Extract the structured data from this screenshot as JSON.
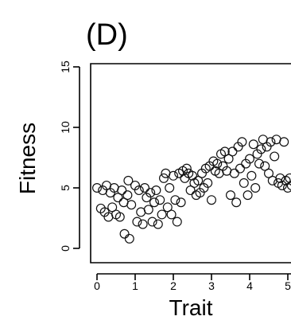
{
  "panel_label": "(D)",
  "chart_data": {
    "type": "scatter",
    "title": "",
    "xlabel": "Trait",
    "ylabel": "Fitness",
    "xlim": [
      -0.2,
      5.2
    ],
    "ylim": [
      -0.5,
      15.5
    ],
    "x_ticks": [
      0,
      1,
      2,
      3,
      4,
      5
    ],
    "x_tick_labels": [
      "0",
      "1",
      "2",
      "3",
      "4",
      "5"
    ],
    "y_ticks": [
      0,
      5,
      10,
      15
    ],
    "y_tick_labels": [
      "0",
      "5",
      "10",
      "15"
    ],
    "grid": false,
    "legend": "none",
    "points": [
      {
        "x": 0.0,
        "y": 5.0
      },
      {
        "x": 0.1,
        "y": 3.3
      },
      {
        "x": 0.15,
        "y": 4.8
      },
      {
        "x": 0.2,
        "y": 3.0
      },
      {
        "x": 0.25,
        "y": 5.2
      },
      {
        "x": 0.3,
        "y": 2.6
      },
      {
        "x": 0.35,
        "y": 4.6
      },
      {
        "x": 0.4,
        "y": 3.4
      },
      {
        "x": 0.45,
        "y": 5.0
      },
      {
        "x": 0.5,
        "y": 2.8
      },
      {
        "x": 0.55,
        "y": 4.2
      },
      {
        "x": 0.6,
        "y": 2.6
      },
      {
        "x": 0.65,
        "y": 4.8
      },
      {
        "x": 0.7,
        "y": 3.8
      },
      {
        "x": 0.72,
        "y": 1.2
      },
      {
        "x": 0.8,
        "y": 4.4
      },
      {
        "x": 0.82,
        "y": 5.6
      },
      {
        "x": 0.85,
        "y": 0.8
      },
      {
        "x": 0.9,
        "y": 3.6
      },
      {
        "x": 1.0,
        "y": 5.2
      },
      {
        "x": 1.05,
        "y": 2.2
      },
      {
        "x": 1.1,
        "y": 4.8
      },
      {
        "x": 1.15,
        "y": 3.0
      },
      {
        "x": 1.2,
        "y": 2.0
      },
      {
        "x": 1.25,
        "y": 5.0
      },
      {
        "x": 1.3,
        "y": 4.2
      },
      {
        "x": 1.35,
        "y": 3.2
      },
      {
        "x": 1.4,
        "y": 4.6
      },
      {
        "x": 1.45,
        "y": 2.2
      },
      {
        "x": 1.5,
        "y": 3.8
      },
      {
        "x": 1.55,
        "y": 4.8
      },
      {
        "x": 1.6,
        "y": 2.0
      },
      {
        "x": 1.65,
        "y": 4.0
      },
      {
        "x": 1.7,
        "y": 2.8
      },
      {
        "x": 1.75,
        "y": 5.8
      },
      {
        "x": 1.8,
        "y": 6.2
      },
      {
        "x": 1.85,
        "y": 3.4
      },
      {
        "x": 1.9,
        "y": 5.0
      },
      {
        "x": 1.95,
        "y": 2.8
      },
      {
        "x": 2.0,
        "y": 6.0
      },
      {
        "x": 2.05,
        "y": 4.0
      },
      {
        "x": 2.1,
        "y": 2.2
      },
      {
        "x": 2.15,
        "y": 6.2
      },
      {
        "x": 2.2,
        "y": 3.8
      },
      {
        "x": 2.25,
        "y": 6.4
      },
      {
        "x": 2.3,
        "y": 5.8
      },
      {
        "x": 2.35,
        "y": 6.6
      },
      {
        "x": 2.4,
        "y": 6.2
      },
      {
        "x": 2.45,
        "y": 4.8
      },
      {
        "x": 2.5,
        "y": 6.0
      },
      {
        "x": 2.55,
        "y": 5.4
      },
      {
        "x": 2.6,
        "y": 4.4
      },
      {
        "x": 2.65,
        "y": 5.6
      },
      {
        "x": 2.7,
        "y": 4.6
      },
      {
        "x": 2.75,
        "y": 6.2
      },
      {
        "x": 2.8,
        "y": 5.0
      },
      {
        "x": 2.85,
        "y": 6.6
      },
      {
        "x": 2.9,
        "y": 5.4
      },
      {
        "x": 2.95,
        "y": 6.8
      },
      {
        "x": 3.0,
        "y": 4.0
      },
      {
        "x": 3.05,
        "y": 7.2
      },
      {
        "x": 3.1,
        "y": 6.4
      },
      {
        "x": 3.15,
        "y": 7.0
      },
      {
        "x": 3.2,
        "y": 6.2
      },
      {
        "x": 3.25,
        "y": 7.8
      },
      {
        "x": 3.3,
        "y": 6.8
      },
      {
        "x": 3.35,
        "y": 8.0
      },
      {
        "x": 3.4,
        "y": 6.4
      },
      {
        "x": 3.45,
        "y": 7.4
      },
      {
        "x": 3.5,
        "y": 4.4
      },
      {
        "x": 3.55,
        "y": 8.0
      },
      {
        "x": 3.6,
        "y": 6.2
      },
      {
        "x": 3.65,
        "y": 3.8
      },
      {
        "x": 3.7,
        "y": 8.4
      },
      {
        "x": 3.75,
        "y": 6.6
      },
      {
        "x": 3.8,
        "y": 8.8
      },
      {
        "x": 3.85,
        "y": 5.4
      },
      {
        "x": 3.9,
        "y": 7.0
      },
      {
        "x": 3.95,
        "y": 4.4
      },
      {
        "x": 4.0,
        "y": 7.4
      },
      {
        "x": 4.05,
        "y": 6.0
      },
      {
        "x": 4.1,
        "y": 8.6
      },
      {
        "x": 4.15,
        "y": 5.0
      },
      {
        "x": 4.2,
        "y": 7.8
      },
      {
        "x": 4.25,
        "y": 7.0
      },
      {
        "x": 4.3,
        "y": 8.2
      },
      {
        "x": 4.35,
        "y": 9.0
      },
      {
        "x": 4.4,
        "y": 6.8
      },
      {
        "x": 4.45,
        "y": 8.4
      },
      {
        "x": 4.5,
        "y": 6.2
      },
      {
        "x": 4.55,
        "y": 8.8
      },
      {
        "x": 4.6,
        "y": 5.6
      },
      {
        "x": 4.65,
        "y": 7.6
      },
      {
        "x": 4.7,
        "y": 9.0
      },
      {
        "x": 4.75,
        "y": 5.4
      },
      {
        "x": 4.8,
        "y": 5.8
      },
      {
        "x": 4.85,
        "y": 5.2
      },
      {
        "x": 4.9,
        "y": 8.8
      },
      {
        "x": 4.95,
        "y": 5.6
      },
      {
        "x": 5.0,
        "y": 5.0
      },
      {
        "x": 5.05,
        "y": 5.8
      },
      {
        "x": 5.1,
        "y": 5.2
      }
    ]
  }
}
